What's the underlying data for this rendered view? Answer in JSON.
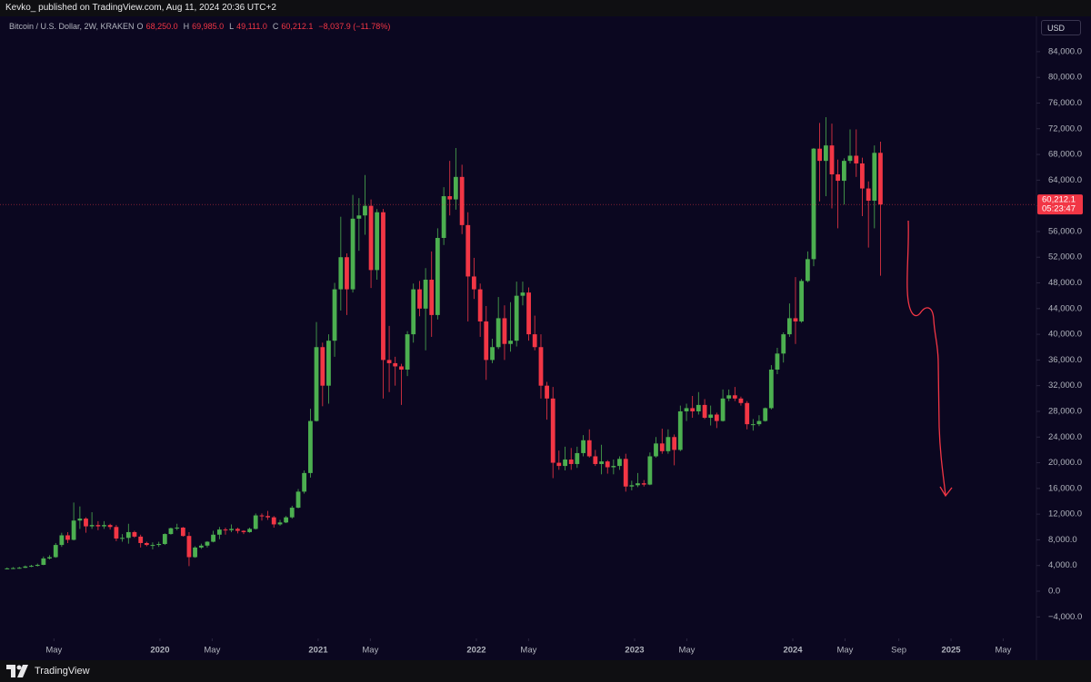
{
  "chart_data": {
    "type": "candlestick",
    "header": "Kevko_ published on TradingView.com, Aug 11, 2024 20:36 UTC+2",
    "title": "Bitcoin / U.S. Dollar, 2W, KRAKEN",
    "legend": {
      "o": "O",
      "open": "68,250.0",
      "h": "H",
      "high": "69,985.0",
      "l": "L",
      "low": "49,111.0",
      "c": "C",
      "close": "60,212.1",
      "change": "−8,037.9 (−11.78%)"
    },
    "currency": "USD",
    "countdown": "05:23:47",
    "brand": "TradingView",
    "up_color": "#4caf50",
    "down_color": "#f23645",
    "x": [
      2019.034,
      2019.072,
      2019.111,
      2019.149,
      2019.187,
      2019.226,
      2019.264,
      2019.302,
      2019.341,
      2019.379,
      2019.417,
      2019.455,
      2019.494,
      2019.532,
      2019.57,
      2019.609,
      2019.647,
      2019.685,
      2019.724,
      2019.762,
      2019.801,
      2019.839,
      2019.878,
      2019.916,
      2019.954,
      2019.993,
      2020.031,
      2020.069,
      2020.108,
      2020.146,
      2020.184,
      2020.222,
      2020.261,
      2020.299,
      2020.337,
      2020.376,
      2020.414,
      2020.452,
      2020.491,
      2020.529,
      2020.567,
      2020.605,
      2020.644,
      2020.682,
      2020.72,
      2020.759,
      2020.797,
      2020.835,
      2020.874,
      2020.912,
      2020.951,
      2020.989,
      2021.028,
      2021.066,
      2021.104,
      2021.143,
      2021.181,
      2021.219,
      2021.258,
      2021.296,
      2021.334,
      2021.372,
      2021.411,
      2021.449,
      2021.487,
      2021.526,
      2021.564,
      2021.602,
      2021.641,
      2021.679,
      2021.717,
      2021.755,
      2021.794,
      2021.832,
      2021.87,
      2021.909,
      2021.947,
      2021.985,
      2022.024,
      2022.062,
      2022.101,
      2022.139,
      2022.178,
      2022.216,
      2022.254,
      2022.293,
      2022.331,
      2022.369,
      2022.408,
      2022.446,
      2022.484,
      2022.522,
      2022.561,
      2022.599,
      2022.637,
      2022.676,
      2022.714,
      2022.752,
      2022.791,
      2022.829,
      2022.867,
      2022.905,
      2022.944,
      2022.982,
      2023.02,
      2023.059,
      2023.097,
      2023.135,
      2023.174,
      2023.212,
      2023.251,
      2023.289,
      2023.328,
      2023.366,
      2023.404,
      2023.443,
      2023.481,
      2023.519,
      2023.558,
      2023.596,
      2023.634,
      2023.672,
      2023.711,
      2023.749,
      2023.787,
      2023.826,
      2023.864,
      2023.902,
      2023.941,
      2023.979,
      2024.017,
      2024.055,
      2024.094,
      2024.132,
      2024.17,
      2024.209,
      2024.247,
      2024.285,
      2024.324,
      2024.362,
      2024.401,
      2024.439,
      2024.478,
      2024.516,
      2024.554
    ],
    "open": [
      3500,
      3550,
      3600,
      3650,
      3850,
      3950,
      4100,
      5100,
      5300,
      7200,
      8700,
      8000,
      11000,
      11300,
      10100,
      10300,
      10100,
      10300,
      10000,
      8200,
      8300,
      9200,
      8500,
      7500,
      7200,
      7200,
      7350,
      8900,
      9800,
      9900,
      8600,
      5300,
      6800,
      7100,
      7700,
      8800,
      9600,
      9500,
      9700,
      9400,
      9200,
      9700,
      11800,
      11700,
      11500,
      10400,
      10700,
      11500,
      13000,
      15500,
      18400,
      26500,
      38000,
      32000,
      39000,
      47000,
      52000,
      47000,
      58000,
      58500,
      60000,
      50000,
      59000,
      36000,
      35500,
      35000,
      34500,
      40000,
      47000,
      44000,
      48500,
      43000,
      55000,
      61500,
      61000,
      64500,
      57000,
      49000,
      47000,
      42000,
      36000,
      38000,
      42500,
      38500,
      39000,
      46000,
      46500,
      40000,
      38000,
      32000,
      30000,
      20000,
      19500,
      20500,
      19800,
      21500,
      23500,
      21000,
      19800,
      20200,
      19300,
      19500,
      20600,
      16300,
      16500,
      16800,
      16600,
      21000,
      23000,
      21800,
      24000,
      22000,
      28000,
      28500,
      28000,
      29000,
      27000,
      27500,
      26500,
      30000,
      30500,
      30000,
      29300,
      26000,
      26000,
      26500,
      28500,
      34500,
      37000,
      40000,
      42500,
      42000,
      48300,
      51700,
      68900,
      67000,
      69400,
      64900,
      63900,
      67000,
      67800,
      66600,
      62700,
      60800,
      68250
    ],
    "high": [
      3700,
      3750,
      3800,
      4000,
      4100,
      4300,
      5400,
      5600,
      7500,
      9100,
      9200,
      13800,
      13200,
      11500,
      12300,
      10900,
      10900,
      10500,
      10300,
      8900,
      10500,
      9400,
      8800,
      7700,
      7600,
      7700,
      9000,
      9900,
      10500,
      10000,
      9200,
      7000,
      7400,
      7800,
      9400,
      10000,
      9900,
      10400,
      9900,
      9500,
      9900,
      12100,
      12100,
      12500,
      11700,
      11100,
      11700,
      13300,
      15900,
      18800,
      28400,
      41900,
      38700,
      40000,
      48000,
      58300,
      52600,
      61700,
      61200,
      64800,
      61000,
      59500,
      59500,
      41300,
      36500,
      35400,
      40500,
      47900,
      48300,
      50300,
      52900,
      56500,
      62900,
      67000,
      69000,
      66400,
      59000,
      51900,
      47900,
      44400,
      39300,
      45800,
      44500,
      45000,
      48200,
      48200,
      47300,
      42900,
      40000,
      32600,
      31800,
      21900,
      22500,
      22300,
      22500,
      24300,
      25200,
      22000,
      22800,
      20400,
      20500,
      21000,
      21400,
      17200,
      18400,
      17300,
      21600,
      24000,
      25300,
      25200,
      24400,
      28900,
      29200,
      30400,
      31000,
      29900,
      28900,
      27800,
      31400,
      31400,
      31800,
      30300,
      29600,
      26800,
      27400,
      28600,
      35200,
      37900,
      40300,
      44800,
      48900,
      48600,
      52900,
      69000,
      72900,
      73800,
      72800,
      67200,
      67400,
      71900,
      71900,
      67500,
      63800,
      69400,
      69985
    ],
    "low": [
      3400,
      3450,
      3500,
      3600,
      3750,
      3850,
      4050,
      4950,
      5200,
      6900,
      7500,
      7900,
      9700,
      9100,
      9700,
      9500,
      9700,
      9600,
      7800,
      7700,
      7400,
      8300,
      6800,
      7000,
      6500,
      6900,
      7200,
      8800,
      9500,
      8500,
      3900,
      5200,
      6600,
      6800,
      7600,
      8100,
      8800,
      9200,
      9000,
      8900,
      9100,
      9600,
      11000,
      11100,
      9900,
      10200,
      10600,
      11300,
      12900,
      15200,
      17700,
      26400,
      28800,
      29200,
      36500,
      43700,
      43000,
      46500,
      53000,
      55500,
      47200,
      48500,
      30000,
      31000,
      32000,
      29000,
      33500,
      38700,
      42800,
      37500,
      39600,
      42300,
      53900,
      58500,
      59400,
      55600,
      42000,
      45500,
      39600,
      32900,
      35500,
      37700,
      36000,
      37300,
      38100,
      44500,
      39000,
      37500,
      30000,
      26700,
      17600,
      18900,
      18800,
      18900,
      19200,
      21000,
      20800,
      19500,
      18200,
      18300,
      18200,
      18900,
      15500,
      15700,
      16200,
      16300,
      16500,
      20800,
      21400,
      21400,
      19600,
      21800,
      26500,
      27000,
      27500,
      26800,
      25800,
      25400,
      26400,
      29600,
      29600,
      28900,
      25200,
      25000,
      25700,
      26400,
      28300,
      33800,
      35600,
      39600,
      38500,
      41800,
      48100,
      50600,
      60700,
      61500,
      59600,
      56500,
      60200,
      66600,
      64500,
      58400,
      53500,
      56500,
      49111
    ],
    "close": [
      3550,
      3600,
      3650,
      3850,
      3950,
      4100,
      5100,
      5300,
      7200,
      8700,
      8000,
      11000,
      11300,
      10100,
      10300,
      10100,
      10300,
      10000,
      8200,
      8300,
      9200,
      8500,
      7500,
      7200,
      7200,
      7350,
      8900,
      9800,
      9900,
      8600,
      5300,
      6800,
      7100,
      7700,
      8800,
      9600,
      9500,
      9700,
      9400,
      9200,
      9700,
      11800,
      11700,
      11500,
      10400,
      10700,
      11500,
      13000,
      15500,
      18400,
      26500,
      38000,
      32000,
      39000,
      47000,
      52000,
      47000,
      58000,
      58500,
      60000,
      50000,
      59000,
      36000,
      35500,
      35000,
      34500,
      40000,
      47000,
      44000,
      48500,
      43000,
      55000,
      61500,
      61000,
      64500,
      57000,
      49000,
      47000,
      42000,
      36000,
      38000,
      42500,
      38500,
      39000,
      46000,
      46500,
      40000,
      38000,
      32000,
      30000,
      20000,
      19500,
      20500,
      19800,
      21500,
      23500,
      21000,
      19800,
      20200,
      19300,
      19500,
      20600,
      16300,
      16500,
      16800,
      16600,
      21000,
      23000,
      21800,
      24000,
      22000,
      28000,
      28500,
      28000,
      29000,
      27000,
      27500,
      26500,
      30000,
      30500,
      30000,
      29300,
      26000,
      26000,
      26500,
      28500,
      34500,
      37000,
      40000,
      42500,
      42000,
      48300,
      51700,
      68900,
      67000,
      69400,
      64900,
      63900,
      67000,
      67800,
      66600,
      62700,
      60800,
      68250,
      60212.1
    ],
    "xlim": [
      2018.989,
      2025.54
    ],
    "xticks": [
      {
        "value": 2019.33,
        "label": "May"
      },
      2020,
      {
        "value": 2020.33,
        "label": "May"
      },
      2021,
      {
        "value": 2021.33,
        "label": "May"
      },
      2022,
      {
        "value": 2022.33,
        "label": "May"
      },
      2023,
      {
        "value": 2023.33,
        "label": "May"
      },
      2024,
      {
        "value": 2024.33,
        "label": "May"
      },
      {
        "value": 2024.67,
        "label": "Sep"
      },
      2025,
      {
        "value": 2025.33,
        "label": "May"
      }
    ],
    "ylim": [
      -7350,
      89500
    ],
    "yticks": [
      {
        "value": -4000,
        "label": "−4,000.0"
      },
      {
        "value": 0,
        "label": "0.0"
      },
      {
        "value": 4000,
        "label": "4,000.0"
      },
      {
        "value": 8000,
        "label": "8,000.0"
      },
      {
        "value": 12000,
        "label": "12,000.0"
      },
      {
        "value": 16000,
        "label": "16,000.0"
      },
      {
        "value": 20000,
        "label": "20,000.0"
      },
      {
        "value": 24000,
        "label": "24,000.0"
      },
      {
        "value": 28000,
        "label": "28,000.0"
      },
      {
        "value": 32000,
        "label": "32,000.0"
      },
      {
        "value": 36000,
        "label": "36,000.0"
      },
      {
        "value": 40000,
        "label": "40,000.0"
      },
      {
        "value": 44000,
        "label": "44,000.0"
      },
      {
        "value": 48000,
        "label": "48,000.0"
      },
      {
        "value": 52000,
        "label": "52,000.0"
      },
      {
        "value": 56000,
        "label": "56,000.0"
      },
      {
        "value": 60000,
        "label": "60,000.0"
      },
      {
        "value": 64000,
        "label": "64,000.0"
      },
      {
        "value": 68000,
        "label": "68,000.0"
      },
      {
        "value": 72000,
        "label": "72,000.0"
      },
      {
        "value": 76000,
        "label": "76,000.0"
      },
      {
        "value": 80000,
        "label": "80,000.0"
      },
      {
        "value": 84000,
        "label": "84,000.0"
      }
    ]
  }
}
